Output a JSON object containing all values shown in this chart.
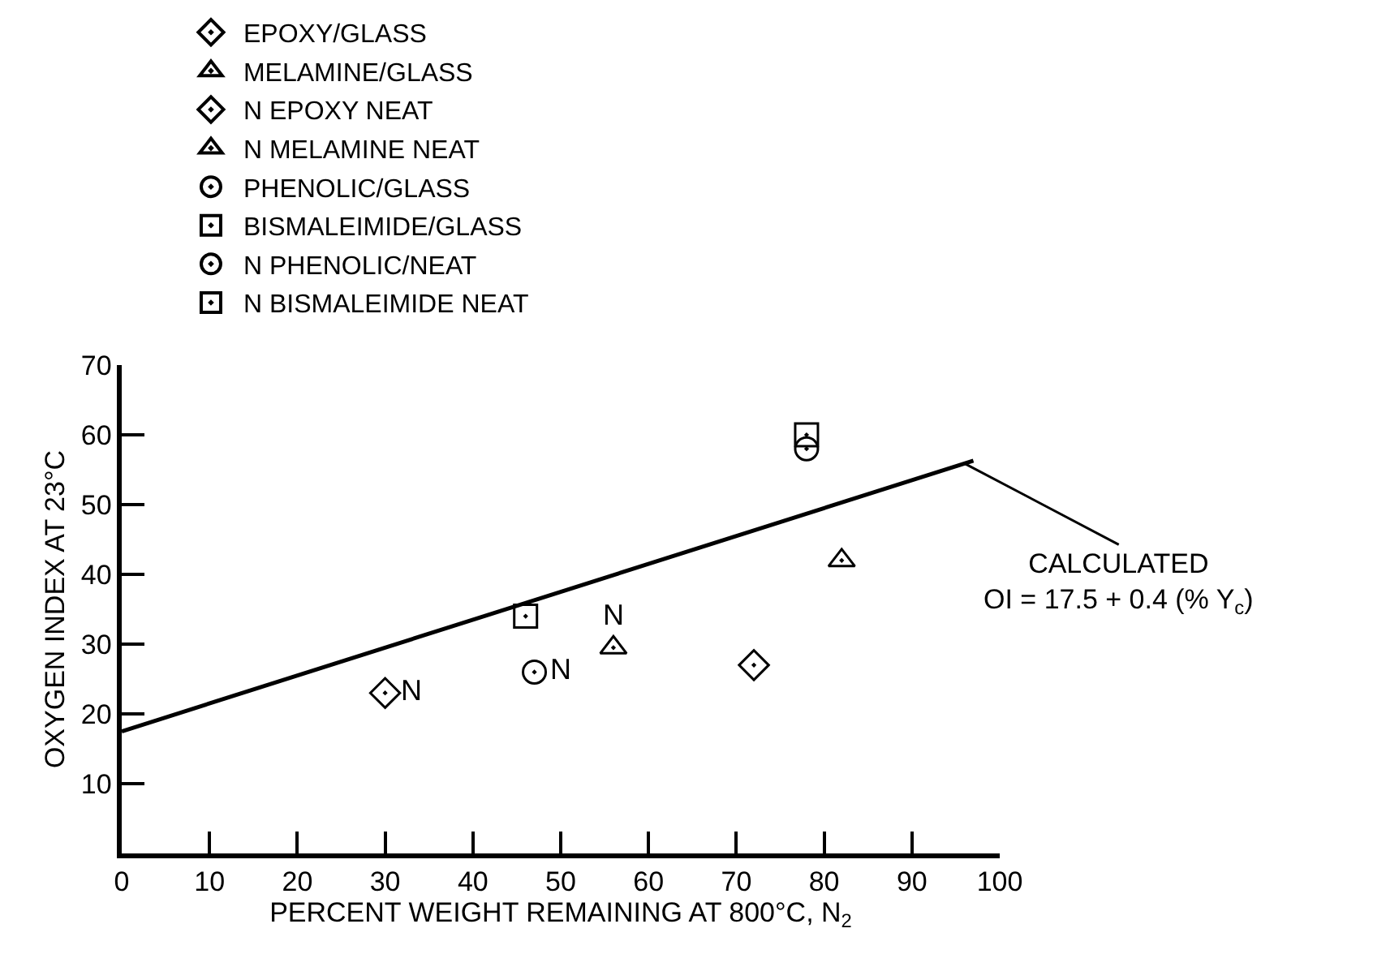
{
  "chart_data": {
    "type": "scatter",
    "xlabel": "PERCENT WEIGHT REMAINING AT 800°C, N$_{2}$",
    "ylabel": "OXYGEN INDEX AT 23°C",
    "xlim": [
      0,
      100
    ],
    "xticks": [
      0,
      10,
      20,
      30,
      40,
      50,
      60,
      70,
      80,
      90,
      100
    ],
    "ylim": [
      0,
      70
    ],
    "yticks": [
      10,
      20,
      30,
      40,
      50,
      60,
      70
    ],
    "legend": "top",
    "series": [
      {
        "name": "EPOXY/GLASS",
        "color": "#000000",
        "marker": "diamond",
        "x": [
          72
        ],
        "values": [
          27
        ]
      },
      {
        "name": "MELAMINE/GLASS",
        "color": "#000000",
        "marker": "triangle",
        "x": [
          82
        ],
        "values": [
          42
        ]
      },
      {
        "name": "N EPOXY NEAT",
        "color": "#000000",
        "marker": "diamond",
        "x": [
          30
        ],
        "values": [
          23
        ],
        "value_labels": [
          "N"
        ]
      },
      {
        "name": "N MELAMINE NEAT",
        "color": "#000000",
        "marker": "triangle",
        "x": [
          56
        ],
        "values": [
          29.5
        ],
        "value_labels": [
          "N"
        ]
      },
      {
        "name": "PHENOLIC/GLASS",
        "color": "#000000",
        "marker": "circle",
        "x": [
          78
        ],
        "values": [
          58
        ]
      },
      {
        "name": "BISMALEIMIDE/GLASS",
        "color": "#000000",
        "marker": "square",
        "x": [
          78
        ],
        "values": [
          60
        ]
      },
      {
        "name": "N PHENOLIC/NEAT",
        "color": "#000000",
        "marker": "circle",
        "x": [
          47
        ],
        "values": [
          26
        ],
        "value_labels": [
          "N"
        ]
      },
      {
        "name": "N BISMALEIMIDE NEAT",
        "color": "#000000",
        "marker": "square",
        "x": [
          46
        ],
        "values": [
          34
        ]
      },
      {
        "type": "line",
        "color": "#000000",
        "marker": "none",
        "line_style": "solid",
        "x": [
          0,
          97
        ],
        "values": [
          17.5,
          56.3
        ]
      }
    ],
    "annotations": [
      {
        "text": "CALCULATED\nOI = 17.5 + 0.4 (% Y$_{c}$)",
        "x": 96,
        "y": 55.9
      }
    ]
  }
}
